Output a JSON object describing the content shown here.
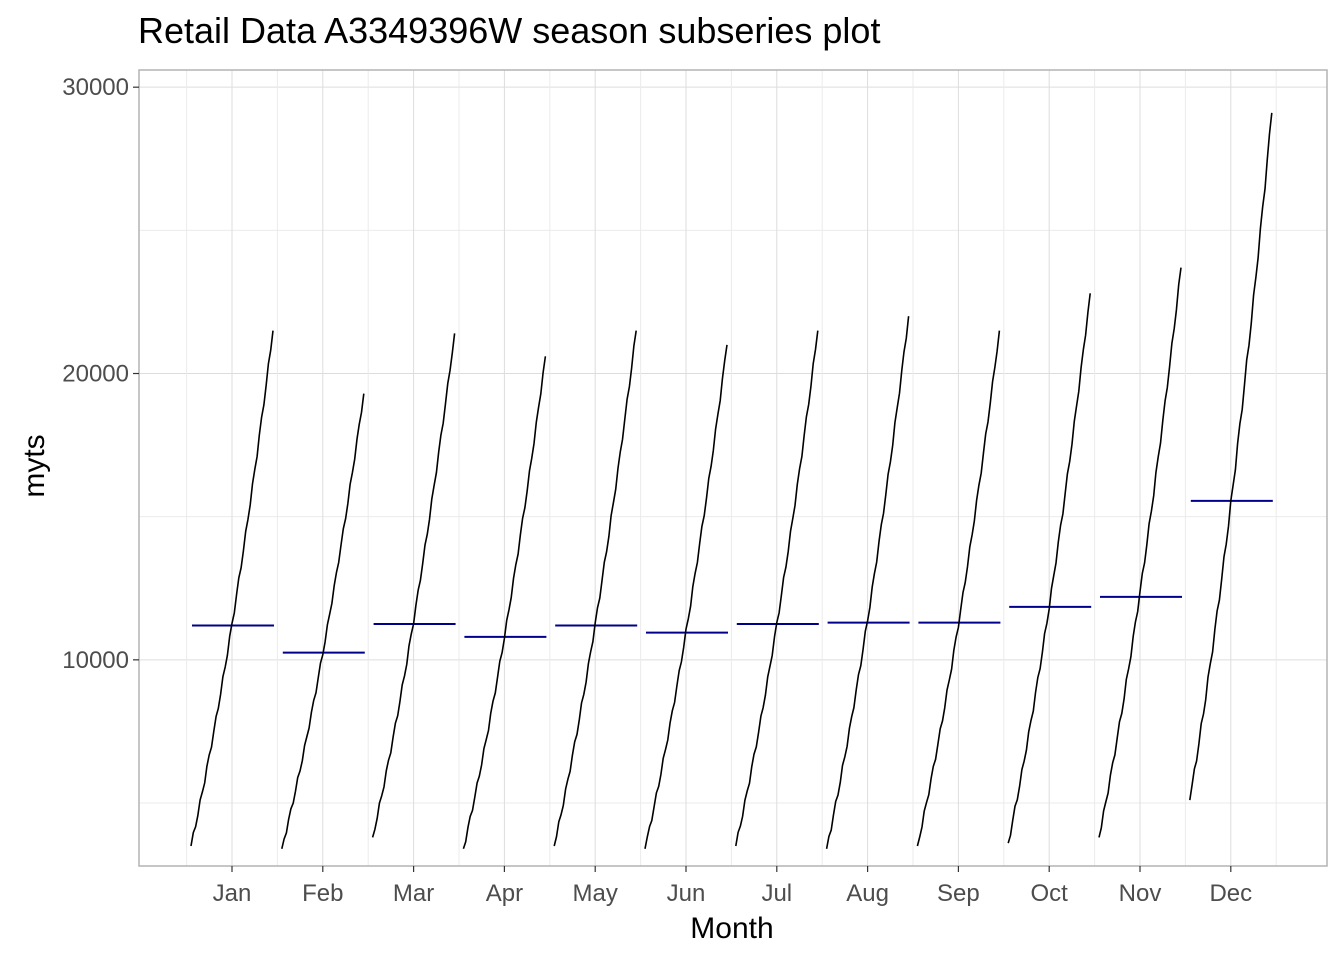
{
  "chart_data": {
    "type": "line",
    "subtype": "season-subseries",
    "title": "Retail Data A3349396W season subseries plot",
    "xlabel": "Month",
    "ylabel": "myts",
    "categories": [
      "Jan",
      "Feb",
      "Mar",
      "Apr",
      "May",
      "Jun",
      "Jul",
      "Aug",
      "Sep",
      "Oct",
      "Nov",
      "Dec"
    ],
    "ylim": [
      2800,
      30600
    ],
    "yticks": [
      10000,
      20000,
      30000
    ],
    "grid": true,
    "colors": {
      "series": "#000000",
      "mean": "#00008b",
      "grid": "#dddddd",
      "panel_border": "#b3b3b3"
    },
    "series": [
      {
        "category": "Jan",
        "start": 3500,
        "end": 21500,
        "mean": 11200
      },
      {
        "category": "Feb",
        "start": 3400,
        "end": 19300,
        "mean": 10250
      },
      {
        "category": "Mar",
        "start": 3800,
        "end": 21400,
        "mean": 11250
      },
      {
        "category": "Apr",
        "start": 3400,
        "end": 20600,
        "mean": 10800
      },
      {
        "category": "May",
        "start": 3500,
        "end": 21500,
        "mean": 11200
      },
      {
        "category": "Jun",
        "start": 3400,
        "end": 21000,
        "mean": 10950
      },
      {
        "category": "Jul",
        "start": 3500,
        "end": 21500,
        "mean": 11250
      },
      {
        "category": "Aug",
        "start": 3400,
        "end": 22000,
        "mean": 11300
      },
      {
        "category": "Sep",
        "start": 3500,
        "end": 21500,
        "mean": 11300
      },
      {
        "category": "Oct",
        "start": 3600,
        "end": 22800,
        "mean": 11850
      },
      {
        "category": "Nov",
        "start": 3800,
        "end": 23700,
        "mean": 12200
      },
      {
        "category": "Dec",
        "start": 5100,
        "end": 29100,
        "mean": 15550
      }
    ]
  }
}
